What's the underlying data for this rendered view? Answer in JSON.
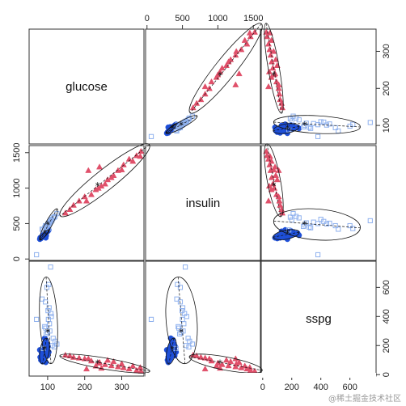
{
  "chart_data": {
    "type": "scatter",
    "variables": [
      "glucose",
      "insulin",
      "sspg"
    ],
    "ranges": {
      "glucose": [
        50,
        360
      ],
      "insulin": [
        -20,
        1600
      ],
      "sspg": [
        -10,
        780
      ]
    },
    "ticks": {
      "glucose": [
        100,
        200,
        300
      ],
      "insulin": [
        0,
        500,
        1000,
        1500
      ],
      "sspg": [
        0,
        200,
        400,
        600
      ],
      "sspg_right": [
        100,
        200,
        300
      ]
    },
    "tick_labels": {
      "glucose": [
        "100",
        "200",
        "300"
      ],
      "insulin": [
        "0",
        "500",
        "1000",
        "1500"
      ],
      "sspg": [
        "0",
        "200",
        "400",
        "600"
      ],
      "sspg_right": [
        "100",
        "200",
        "300"
      ]
    },
    "series": [
      {
        "color": "#e0506a",
        "marker": "triangle",
        "centroid": {
          "glucose": 235,
          "insulin": 1030,
          "sspg": 76
        },
        "points": [
          {
            "glucose": 218,
            "insulin": 910,
            "sspg": 95
          },
          {
            "glucose": 237,
            "insulin": 1000,
            "sspg": 80
          },
          {
            "glucose": 255,
            "insulin": 1060,
            "sspg": 70
          },
          {
            "glucose": 272,
            "insulin": 1150,
            "sspg": 62
          },
          {
            "glucose": 290,
            "insulin": 1250,
            "sspg": 55
          },
          {
            "glucose": 305,
            "insulin": 1330,
            "sspg": 48
          },
          {
            "glucose": 320,
            "insulin": 1410,
            "sspg": 40
          },
          {
            "glucose": 340,
            "insulin": 1460,
            "sspg": 30
          },
          {
            "glucose": 352,
            "insulin": 1520,
            "sspg": 25
          },
          {
            "glucose": 200,
            "insulin": 880,
            "sspg": 110
          },
          {
            "glucose": 185,
            "insulin": 820,
            "sspg": 115
          },
          {
            "glucose": 170,
            "insulin": 760,
            "sspg": 120
          },
          {
            "glucose": 160,
            "insulin": 700,
            "sspg": 130
          },
          {
            "glucose": 148,
            "insulin": 650,
            "sspg": 135
          },
          {
            "glucose": 262,
            "insulin": 1120,
            "sspg": 100
          },
          {
            "glucose": 278,
            "insulin": 1180,
            "sspg": 90
          },
          {
            "glucose": 300,
            "insulin": 1260,
            "sspg": 75
          },
          {
            "glucose": 230,
            "insulin": 980,
            "sspg": 60
          },
          {
            "glucose": 245,
            "insulin": 1030,
            "sspg": 45
          },
          {
            "glucose": 330,
            "insulin": 1380,
            "sspg": 60
          },
          {
            "glucose": 350,
            "insulin": 1450,
            "sspg": 50
          },
          {
            "glucose": 210,
            "insulin": 1250,
            "sspg": 110
          },
          {
            "glucose": 240,
            "insulin": 1300,
            "sspg": 85
          },
          {
            "glucose": 205,
            "insulin": 820,
            "sspg": 40
          }
        ]
      },
      {
        "color": "#1e4fd8",
        "marker": "circle",
        "centroid": {
          "glucose": 92,
          "insulin": 355,
          "sspg": 170
        },
        "points": [
          {
            "glucose": 80,
            "insulin": 300,
            "sspg": 120
          },
          {
            "glucose": 85,
            "insulin": 320,
            "sspg": 140
          },
          {
            "glucose": 88,
            "insulin": 340,
            "sspg": 160
          },
          {
            "glucose": 90,
            "insulin": 350,
            "sspg": 170
          },
          {
            "glucose": 92,
            "insulin": 360,
            "sspg": 180
          },
          {
            "glucose": 94,
            "insulin": 370,
            "sspg": 150
          },
          {
            "glucose": 96,
            "insulin": 330,
            "sspg": 190
          },
          {
            "glucose": 98,
            "insulin": 380,
            "sspg": 210
          },
          {
            "glucose": 100,
            "insulin": 390,
            "sspg": 130
          },
          {
            "glucose": 82,
            "insulin": 290,
            "sspg": 100
          },
          {
            "glucose": 86,
            "insulin": 310,
            "sspg": 90
          },
          {
            "glucose": 89,
            "insulin": 330,
            "sspg": 110
          },
          {
            "glucose": 91,
            "insulin": 345,
            "sspg": 200
          },
          {
            "glucose": 93,
            "insulin": 355,
            "sspg": 220
          },
          {
            "glucose": 95,
            "insulin": 365,
            "sspg": 240
          },
          {
            "glucose": 97,
            "insulin": 375,
            "sspg": 160
          },
          {
            "glucose": 99,
            "insulin": 385,
            "sspg": 175
          },
          {
            "glucose": 101,
            "insulin": 395,
            "sspg": 195
          },
          {
            "glucose": 84,
            "insulin": 305,
            "sspg": 145
          },
          {
            "glucose": 87,
            "insulin": 325,
            "sspg": 135
          },
          {
            "glucose": 103,
            "insulin": 410,
            "sspg": 155
          },
          {
            "glucose": 79,
            "insulin": 280,
            "sspg": 170
          },
          {
            "glucose": 92,
            "insulin": 335,
            "sspg": 250
          },
          {
            "glucose": 95,
            "insulin": 300,
            "sspg": 85
          }
        ]
      },
      {
        "color": "#8fb1ee",
        "marker": "square",
        "centroid": {
          "glucose": 100,
          "insulin": 480,
          "sspg": 290
        },
        "points": [
          {
            "glucose": 100,
            "insulin": 480,
            "sspg": 290
          },
          {
            "glucose": 95,
            "insulin": 450,
            "sspg": 320
          },
          {
            "glucose": 105,
            "insulin": 520,
            "sspg": 350
          },
          {
            "glucose": 110,
            "insulin": 560,
            "sspg": 400
          },
          {
            "glucose": 102,
            "insulin": 500,
            "sspg": 380
          },
          {
            "glucose": 98,
            "insulin": 470,
            "sspg": 600
          },
          {
            "glucose": 103,
            "insulin": 430,
            "sspg": 620
          },
          {
            "glucose": 108,
            "insulin": 540,
            "sspg": 740
          },
          {
            "glucose": 85,
            "insulin": 420,
            "sspg": 520
          },
          {
            "glucose": 92,
            "insulin": 440,
            "sspg": 330
          },
          {
            "glucose": 115,
            "insulin": 580,
            "sspg": 250
          },
          {
            "glucose": 120,
            "insulin": 600,
            "sspg": 230
          },
          {
            "glucose": 125,
            "insulin": 640,
            "sspg": 210
          },
          {
            "glucose": 96,
            "insulin": 460,
            "sspg": 280
          },
          {
            "glucose": 106,
            "insulin": 510,
            "sspg": 300
          },
          {
            "glucose": 88,
            "insulin": 410,
            "sspg": 180
          },
          {
            "glucose": 70,
            "insulin": 60,
            "sspg": 380
          },
          {
            "glucose": 112,
            "insulin": 550,
            "sspg": 200
          },
          {
            "glucose": 118,
            "insulin": 590,
            "sspg": 190
          },
          {
            "glucose": 94,
            "insulin": 470,
            "sspg": 500
          },
          {
            "glucose": 101,
            "insulin": 495,
            "sspg": 440
          },
          {
            "glucose": 104,
            "insulin": 505,
            "sspg": 460
          },
          {
            "glucose": 109,
            "insulin": 530,
            "sspg": 420
          }
        ]
      }
    ],
    "diagonal_labels": [
      "glucose",
      "insulin",
      "sspg"
    ],
    "grid": false
  },
  "watermark": "@稀土掘金技术社区"
}
